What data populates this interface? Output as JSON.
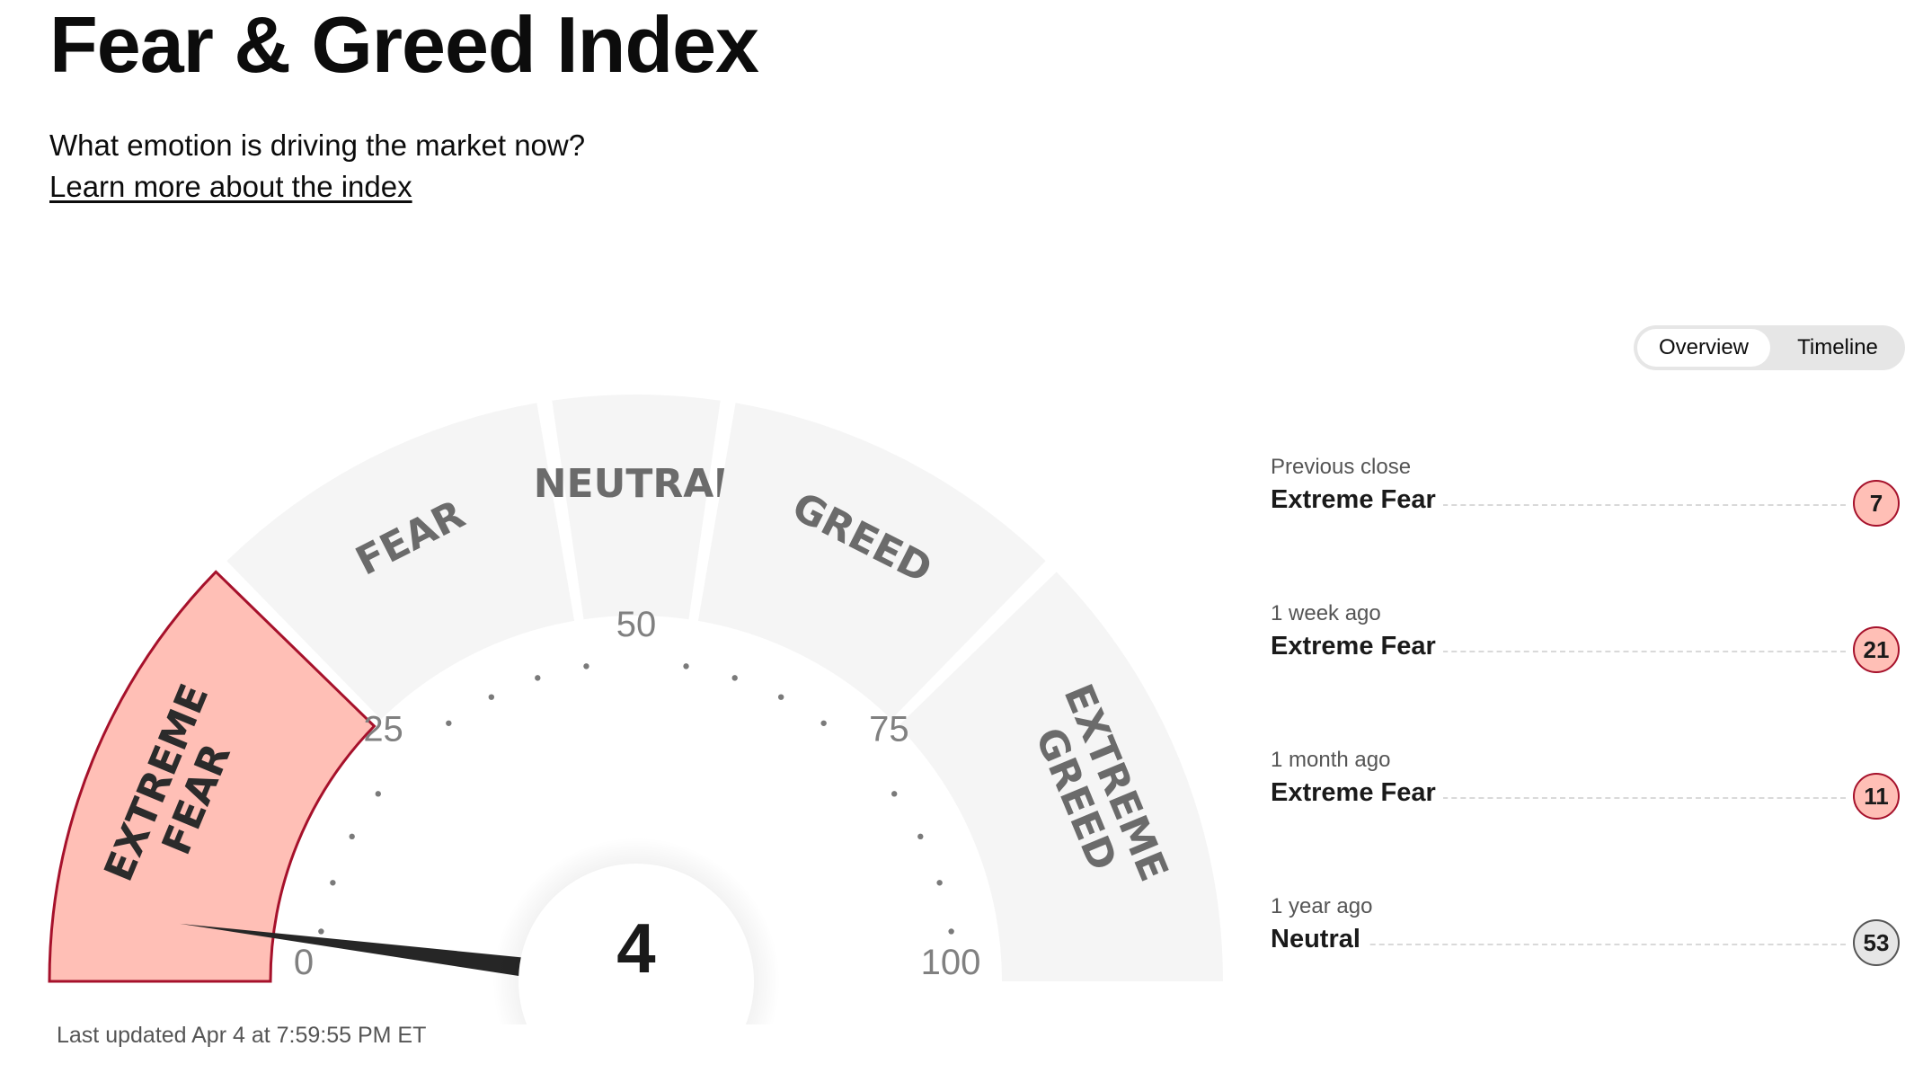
{
  "header": {
    "title": "Fear & Greed Index",
    "subtitle": "What emotion is driving the market now?",
    "learn_link": "Learn more about the index"
  },
  "view_toggle": {
    "options": [
      "Overview",
      "Timeline"
    ],
    "selected": "Overview"
  },
  "gauge": {
    "value": 4,
    "value_label": "4",
    "current_rating": "Extreme Fear",
    "sections": [
      {
        "lines": [
          "EXTREME",
          "FEAR"
        ],
        "from": 0,
        "to": 25,
        "active": true
      },
      {
        "lines": [
          "FEAR"
        ],
        "from": 25,
        "to": 45,
        "active": false
      },
      {
        "lines": [
          "NEUTRAL"
        ],
        "from": 45,
        "to": 55,
        "active": false
      },
      {
        "lines": [
          "GREED"
        ],
        "from": 55,
        "to": 75,
        "active": false
      },
      {
        "lines": [
          "EXTREME",
          "GREED"
        ],
        "from": 75,
        "to": 100,
        "active": false
      }
    ],
    "ticks": [
      "0",
      "25",
      "50",
      "75",
      "100"
    ],
    "colors": {
      "active_fill": "#ffbfb6",
      "active_stroke": "#a6112b",
      "inactive_fill": "#f5f5f5",
      "label_text": "#6b6b6b",
      "needle": "#262626"
    }
  },
  "last_updated": "Last updated Apr 4 at 7:59:55 PM ET",
  "history": [
    {
      "label": "Previous close",
      "rating": "Extreme Fear",
      "value": "7",
      "color": "#ffbfb6",
      "border": "#a6112b"
    },
    {
      "label": "1 week ago",
      "rating": "Extreme Fear",
      "value": "21",
      "color": "#ffbfb6",
      "border": "#a6112b"
    },
    {
      "label": "1 month ago",
      "rating": "Extreme Fear",
      "value": "11",
      "color": "#ffbfb6",
      "border": "#a6112b"
    },
    {
      "label": "1 year ago",
      "rating": "Neutral",
      "value": "53",
      "color": "#e6e6e6",
      "border": "#555555"
    }
  ]
}
